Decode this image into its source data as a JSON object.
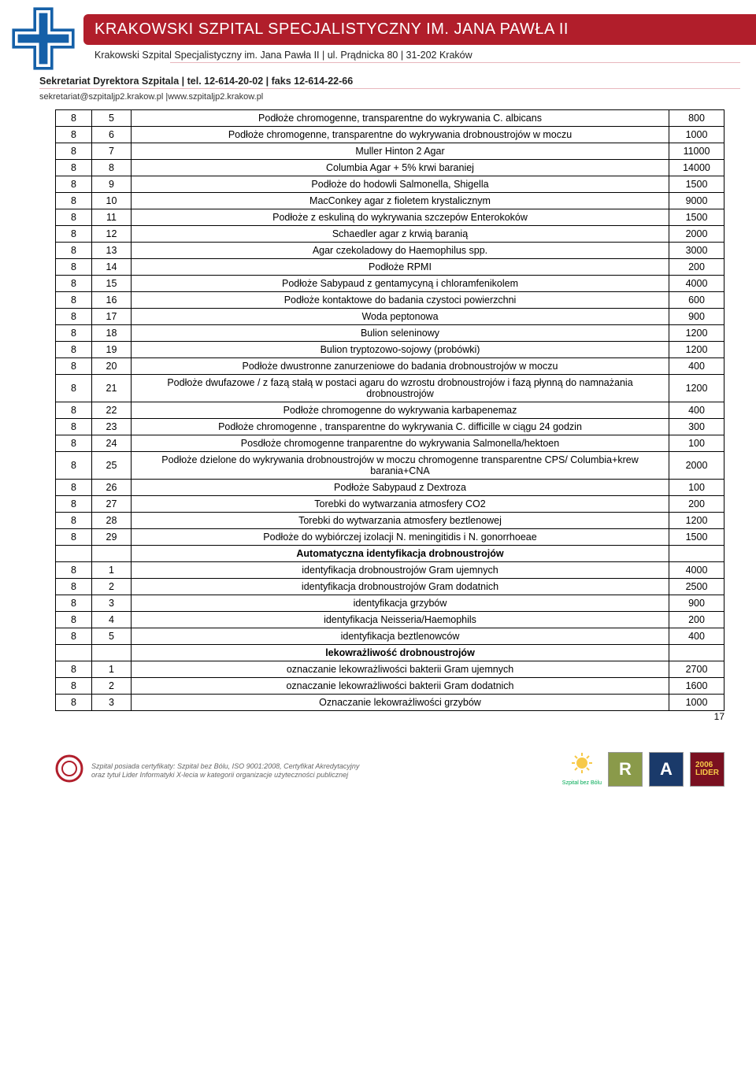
{
  "header": {
    "hospital_title": "KRAKOWSKI SZPITAL SPECJALISTYCZNY IM. JANA PAWŁA II",
    "address_line": "Krakowski Szpital Specjalistyczny im. Jana Pawła II  |  ul. Prądnicka 80  |  31-202 Kraków",
    "secretariat_line": "Sekretariat Dyrektora Szpitala  |  tel. 12-614-20-02  |  faks 12-614-22-66",
    "contact_line": "sekretariat@szpitaljp2.krakow.pl |www.szpitaljp2.krakow.pl"
  },
  "rows": [
    {
      "a": "8",
      "b": "5",
      "c": "Podłoże chromogenne, transparentne do wykrywania C. albicans",
      "d": "800"
    },
    {
      "a": "8",
      "b": "6",
      "c": "Podłoże chromogenne, transparentne do wykrywania drobnoustrojów w moczu",
      "d": "1000"
    },
    {
      "a": "8",
      "b": "7",
      "c": "Muller Hinton 2 Agar",
      "d": "11000"
    },
    {
      "a": "8",
      "b": "8",
      "c": "Columbia Agar + 5% krwi baraniej",
      "d": "14000"
    },
    {
      "a": "8",
      "b": "9",
      "c": "Podłoże do hodowli Salmonella, Shigella",
      "d": "1500"
    },
    {
      "a": "8",
      "b": "10",
      "c": "MacConkey agar z fioletem krystalicznym",
      "d": "9000"
    },
    {
      "a": "8",
      "b": "11",
      "c": "Podłoże z eskuliną do wykrywania szczepów Enterokoków",
      "d": "1500"
    },
    {
      "a": "8",
      "b": "12",
      "c": "Schaedler agar z krwią baranią",
      "d": "2000"
    },
    {
      "a": "8",
      "b": "13",
      "c": "Agar czekoladowy do Haemophilus spp.",
      "d": "3000"
    },
    {
      "a": "8",
      "b": "14",
      "c": "Podłoże RPMI",
      "d": "200"
    },
    {
      "a": "8",
      "b": "15",
      "c": "Podłoże Sabураud z gentamycyną i chloramfenikolem",
      "d": "4000"
    },
    {
      "a": "8",
      "b": "16",
      "c": "Podłoże kontaktowe do badania czystoci powierzchni",
      "d": "600"
    },
    {
      "a": "8",
      "b": "17",
      "c": "Woda peptonowa",
      "d": "900"
    },
    {
      "a": "8",
      "b": "18",
      "c": "Bulion seleninowy",
      "d": "1200"
    },
    {
      "a": "8",
      "b": "19",
      "c": "Bulion tryptozowo-sojowy (probówki)",
      "d": "1200"
    },
    {
      "a": "8",
      "b": "20",
      "c": "Podłoże dwustronne zanurzeniowe do badania drobnoustrojów w moczu",
      "d": "400"
    },
    {
      "a": "8",
      "b": "21",
      "c": "Podłoże dwufazowe / z fazą stałą w postaci agaru do wzrostu drobnoustrojów i fazą płynną do namnażania drobnoustrojów",
      "d": "1200"
    },
    {
      "a": "8",
      "b": "22",
      "c": "Podłoże chromogenne do wykrywania karbapenemaz",
      "d": "400"
    },
    {
      "a": "8",
      "b": "23",
      "c": "Podłoże chromogenne , transparentne do wykrywania C. difficille w ciągu 24 godzin",
      "d": "300"
    },
    {
      "a": "8",
      "b": "24",
      "c": "Posdłoże chromogenne tranparentne do wykrywania Salmonella/hektoen",
      "d": "100"
    },
    {
      "a": "8",
      "b": "25",
      "c": "Podłoże dzielone do wykrywania drobnoustrojów w moczu chromogenne transparentne CPS/ Columbia+krew barania+CNA",
      "d": "2000"
    },
    {
      "a": "8",
      "b": "26",
      "c": "Podłoże Sabураud z Dextroza",
      "d": "100"
    },
    {
      "a": "8",
      "b": "27",
      "c": "Torebki do wytwarzania atmosfery CO2",
      "d": "200"
    },
    {
      "a": "8",
      "b": "28",
      "c": "Torebki do wytwarzania atmosfery beztlenowej",
      "d": "1200"
    },
    {
      "a": "8",
      "b": "29",
      "c": "Podłoże do wybiórczej izolacji N. meningitidis i N. gonorrhoeae",
      "d": "1500"
    }
  ],
  "section1": "Automatyczna identyfikacja drobnoustrojów",
  "rows2": [
    {
      "a": "8",
      "b": "1",
      "c": "identyfikacja drobnoustrojów Gram ujemnych",
      "d": "4000"
    },
    {
      "a": "8",
      "b": "2",
      "c": "identyfikacja drobnoustrojów Gram dodatnich",
      "d": "2500"
    },
    {
      "a": "8",
      "b": "3",
      "c": "identyfikacja grzybów",
      "d": "900"
    },
    {
      "a": "8",
      "b": "4",
      "c": "identyfikacja Neisseria/Haemophils",
      "d": "200"
    },
    {
      "a": "8",
      "b": "5",
      "c": "identyfikacja beztlenowców",
      "d": "400"
    }
  ],
  "section2": "lekowrażliwość  drobnoustrojów",
  "rows3": [
    {
      "a": "8",
      "b": "1",
      "c": "oznaczanie lekowrażliwości bakterii Gram ujemnych",
      "d": "2700"
    },
    {
      "a": "8",
      "b": "2",
      "c": "oznaczanie lekowrażliwości bakterii Gram dodatnich",
      "d": "1600"
    },
    {
      "a": "8",
      "b": "3",
      "c": "Oznaczanie lekowrażliwości grzybów",
      "d": "1000"
    }
  ],
  "footer": {
    "cert_line1": "Szpital posiada certyfikaty: Szpital bez Bólu, ISO 9001:2008, Certyfikat Akredytacyjny",
    "cert_line2": "oraz tytuł Lider Informatyki X-lecia w kategorii organizacje użyteczności publicznej",
    "szpital_bez_bolu": "Szpital bez Bólu",
    "page_number": "17"
  }
}
